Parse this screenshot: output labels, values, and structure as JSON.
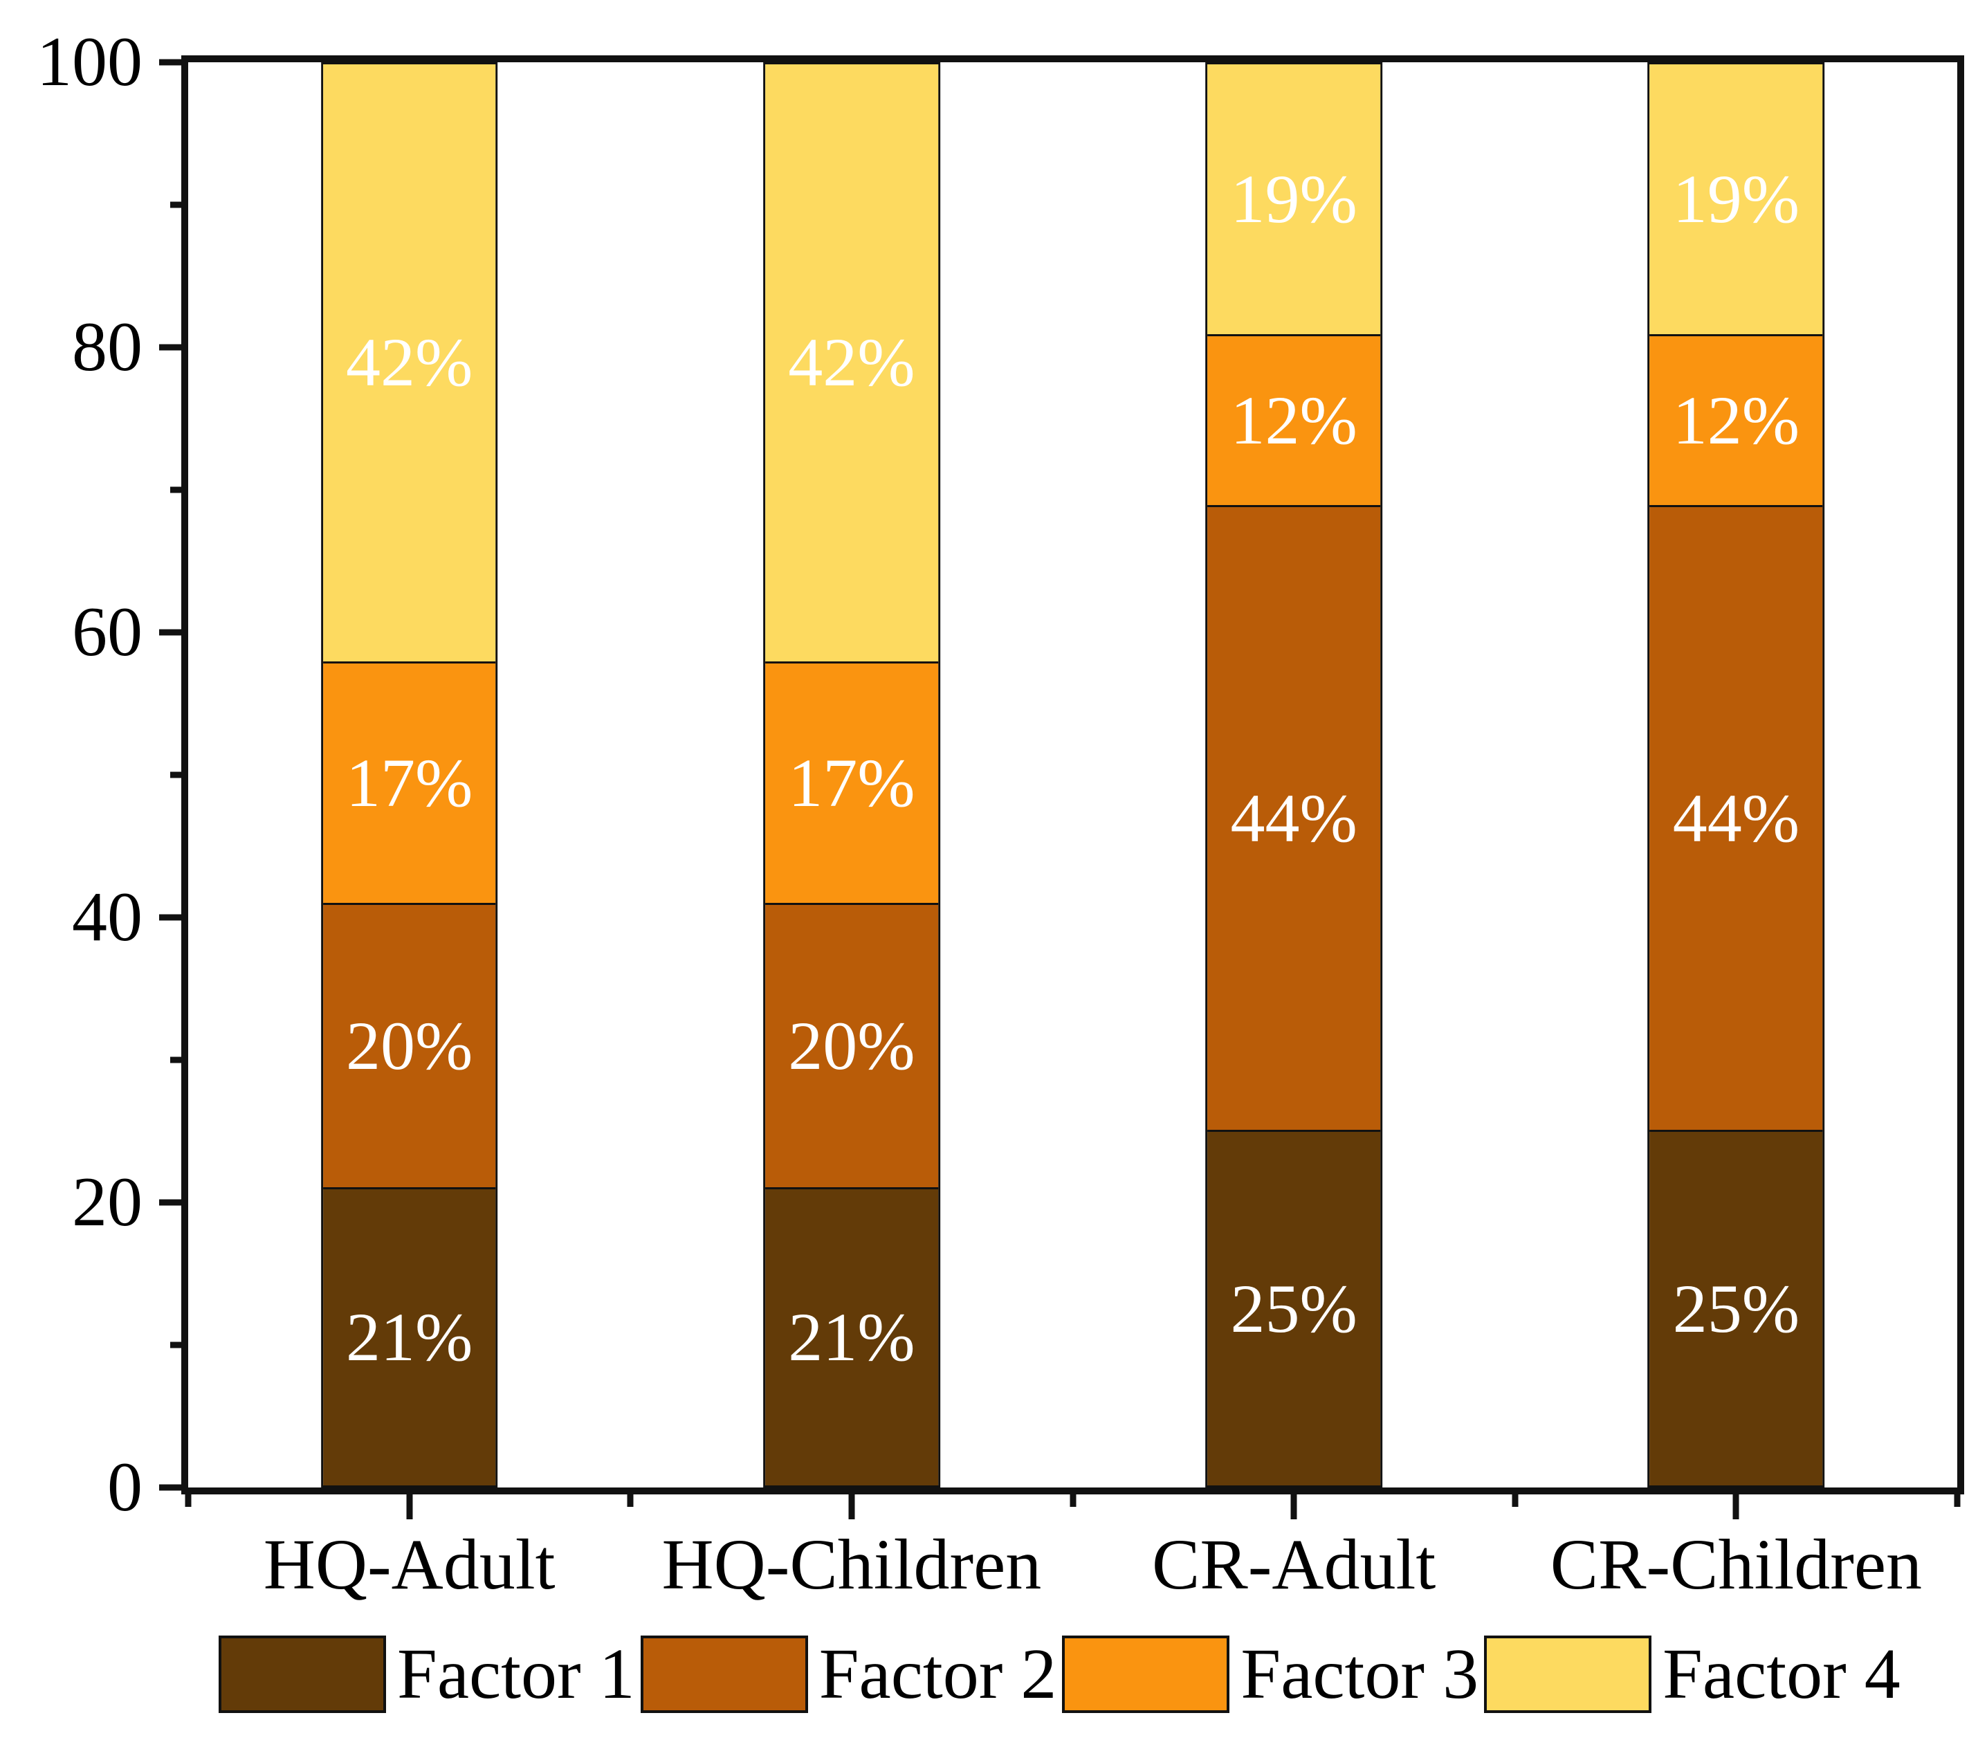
{
  "figure": {
    "background": "#ffffff",
    "axis_color": "#111111",
    "bar_label_color": "#ffffff"
  },
  "chart_data": {
    "type": "bar",
    "stacked": true,
    "orientation": "vertical",
    "title": "",
    "xlabel": "",
    "ylabel": "",
    "grid": false,
    "legend_position": "bottom",
    "categories": [
      "HQ-Adult",
      "HQ-Children",
      "CR-Adult",
      "CR-Children"
    ],
    "series": [
      {
        "name": "Factor 1",
        "color": "#633B08",
        "values": [
          21,
          21,
          25,
          25
        ],
        "labels": [
          "21%",
          "21%",
          "25%",
          "25%"
        ]
      },
      {
        "name": "Factor 2",
        "color": "#B95C08",
        "values": [
          20,
          20,
          44,
          44
        ],
        "labels": [
          "20%",
          "20%",
          "44%",
          "44%"
        ]
      },
      {
        "name": "Factor 3",
        "color": "#FA9410",
        "values": [
          17,
          17,
          12,
          12
        ],
        "labels": [
          "17%",
          "17%",
          "12%",
          "12%"
        ]
      },
      {
        "name": "Factor 4",
        "color": "#FDDA60",
        "values": [
          42,
          42,
          19,
          19
        ],
        "labels": [
          "42%",
          "42%",
          "19%",
          "19%"
        ]
      }
    ],
    "ylim": [
      0,
      100
    ],
    "y_major_ticks": [
      0,
      20,
      40,
      60,
      80,
      100
    ],
    "y_minor_ticks": [
      10,
      30,
      50,
      70,
      90
    ],
    "y_tick_labels": [
      "0",
      "20",
      "40",
      "60",
      "80",
      "100"
    ],
    "bar_width_fraction": 0.4
  }
}
